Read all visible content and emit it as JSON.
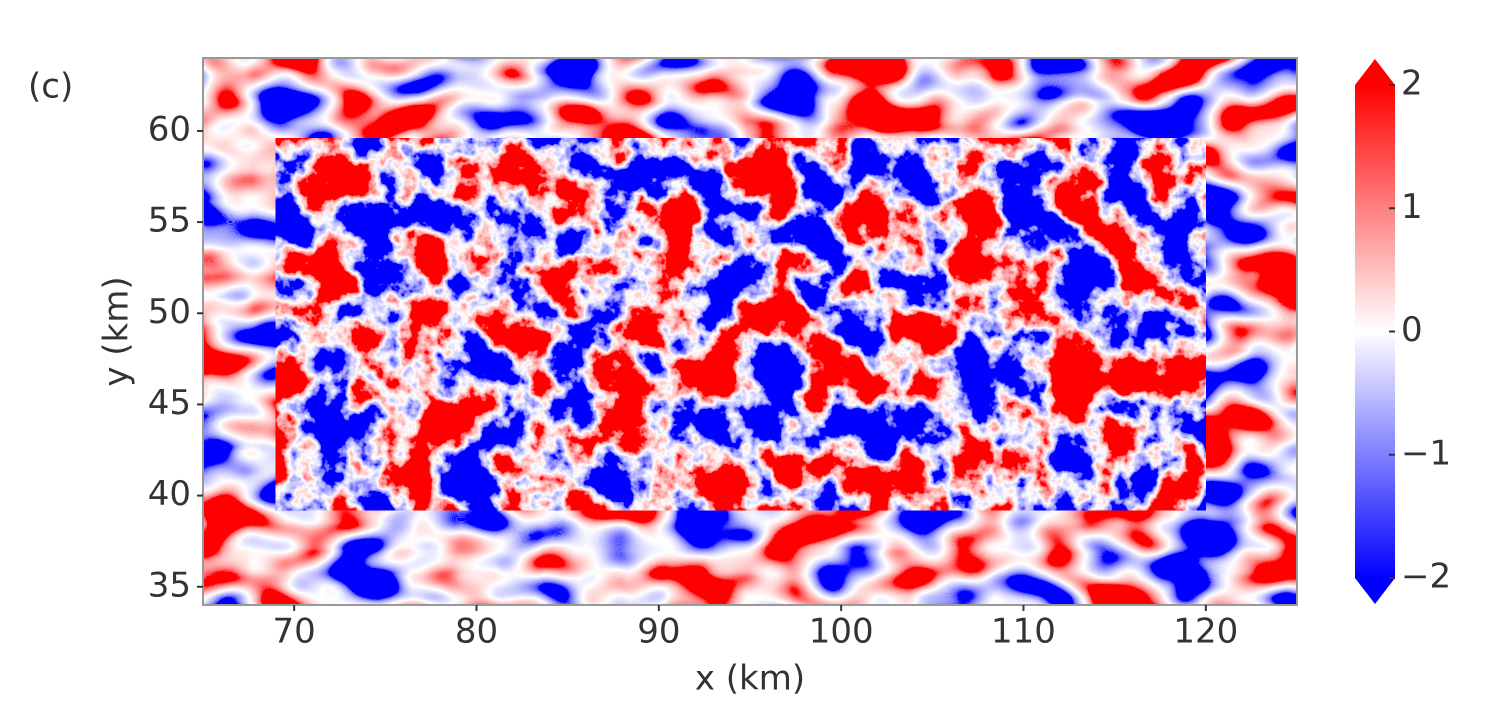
{
  "chart_data": {
    "type": "heatmap",
    "panel_label": "(c)",
    "xlabel": "x (km)",
    "ylabel": "y (km)",
    "xlim": [
      65,
      125
    ],
    "xticks": [
      70,
      80,
      90,
      100,
      110,
      120
    ],
    "ylim": [
      34,
      64
    ],
    "yticks": [
      35,
      40,
      45,
      50,
      55,
      60
    ],
    "inner_box": {
      "x": [
        69,
        120
      ],
      "y": [
        39.2,
        59.6
      ]
    },
    "colormap": [
      "#0000ff",
      "#ffffff",
      "#ff0000"
    ],
    "clim": [
      -2,
      2
    ],
    "cticks": [
      {
        "value": -2,
        "label": "−2"
      },
      {
        "value": -1,
        "label": "−1"
      },
      0,
      1,
      2
    ]
  }
}
